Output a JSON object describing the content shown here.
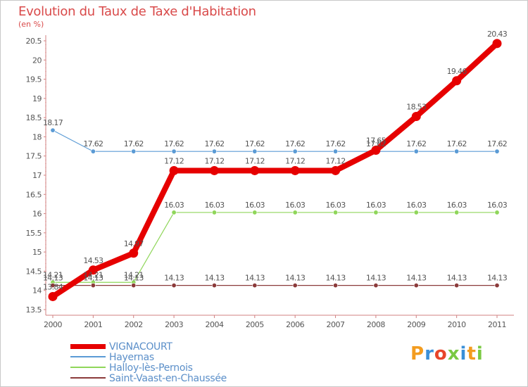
{
  "title": "Evolution du Taux de Taxe d'Habitation",
  "subtitle": "(en %)",
  "brand": {
    "text": "Proxiti",
    "letters": [
      "P",
      "r",
      "o",
      "x",
      "i",
      "t",
      "i"
    ],
    "colors": [
      "#f39c1f",
      "#3a8fd8",
      "#e8452a",
      "#7ac943",
      "#3a8fd8",
      "#f39c1f",
      "#7ac943"
    ]
  },
  "chart_data": {
    "type": "line",
    "title": "Evolution du Taux de Taxe d'Habitation",
    "ylabel": "(en %)",
    "xlabel": "",
    "x": [
      "2000",
      "2001",
      "2002",
      "2003",
      "2004",
      "2005",
      "2006",
      "2007",
      "2008",
      "2009",
      "2010",
      "2011"
    ],
    "ylim": [
      13.5,
      20.5
    ],
    "yticks": [
      "13.5",
      "14",
      "14.5",
      "15",
      "15.5",
      "16",
      "16.5",
      "17",
      "17.5",
      "18",
      "18.5",
      "19",
      "19.5",
      "20",
      "20.5"
    ],
    "grid": false,
    "legend_position": "bottom-left",
    "series": [
      {
        "name": "Hayernas",
        "color": "#5b9bd5",
        "values": [
          18.17,
          17.62,
          17.62,
          17.62,
          17.62,
          17.62,
          17.62,
          17.62,
          17.62,
          17.62,
          17.62,
          17.62
        ],
        "labels": [
          "18.17",
          "17.62",
          "17.62",
          "17.62",
          "17.62",
          "17.62",
          "17.62",
          "17.62",
          "17.62",
          "17.62",
          "17.62",
          "17.62"
        ]
      },
      {
        "name": "Halloy-lès-Pernois",
        "color": "#8fd65a",
        "values": [
          14.21,
          14.21,
          14.21,
          16.03,
          16.03,
          16.03,
          16.03,
          16.03,
          16.03,
          16.03,
          16.03,
          16.03
        ],
        "labels": [
          "14.21",
          "14.21",
          "14.21",
          "16.03",
          "16.03",
          "16.03",
          "16.03",
          "16.03",
          "16.03",
          "16.03",
          "16.03",
          "16.03"
        ]
      },
      {
        "name": "Saint-Vaast-en-Chaussée",
        "color": "#8b3a3a",
        "values": [
          14.13,
          14.13,
          14.13,
          14.13,
          14.13,
          14.13,
          14.13,
          14.13,
          14.13,
          14.13,
          14.13,
          14.13
        ],
        "labels": [
          "14.13",
          "14.13",
          "14.13",
          "14.13",
          "14.13",
          "14.13",
          "14.13",
          "14.13",
          "14.13",
          "14.13",
          "14.13",
          "14.13"
        ]
      },
      {
        "name": "VIGNACOURT",
        "color": "#e60000",
        "values": [
          13.84,
          14.53,
          14.97,
          17.12,
          17.12,
          17.12,
          17.12,
          17.12,
          17.65,
          18.53,
          19.46,
          20.43
        ],
        "labels": [
          "13.84",
          "14.53",
          "14.97",
          "17.12",
          "17.12",
          "17.12",
          "17.12",
          "17.12",
          "17.65",
          "18.53",
          "19.46",
          "20.43"
        ]
      }
    ]
  },
  "legend": [
    {
      "label": "VIGNACOURT",
      "color": "#e60000"
    },
    {
      "label": "Hayernas",
      "color": "#5b9bd5"
    },
    {
      "label": "Halloy-lès-Pernois",
      "color": "#8fd65a"
    },
    {
      "label": "Saint-Vaast-en-Chaussée",
      "color": "#8b3a3a"
    }
  ]
}
